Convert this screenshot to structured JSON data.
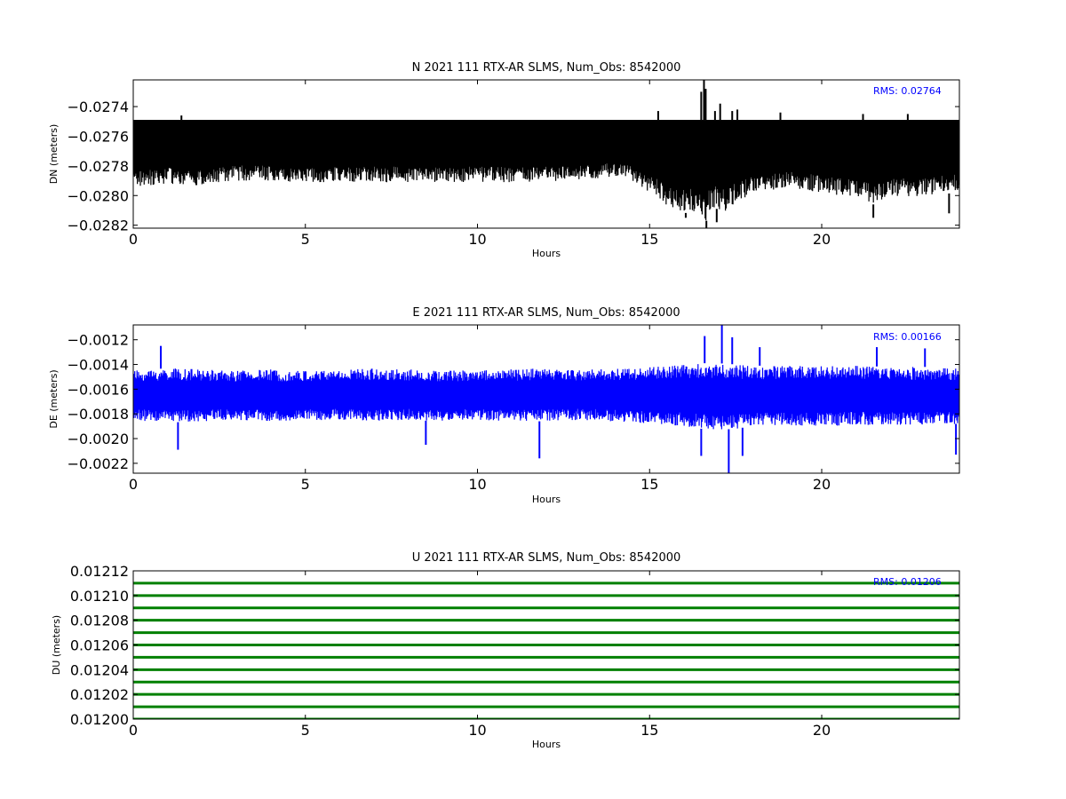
{
  "chart_data": [
    {
      "type": "line",
      "title": "N 2021 111 RTX-AR  SLMS, Num_Obs: 8542000",
      "xlabel": "Hours",
      "ylabel": "DN (meters)",
      "xlim": [
        0,
        24
      ],
      "ylim": [
        -0.02822,
        -0.02722
      ],
      "x_ticks": [
        0,
        5,
        10,
        15,
        20
      ],
      "y_ticks": [
        -0.0274,
        -0.0276,
        -0.0278,
        -0.028,
        -0.0282
      ],
      "y_tick_labels": [
        "−0.0274",
        "−0.0276",
        "−0.0278",
        "−0.0280",
        "−0.0282"
      ],
      "annotation": "RMS:  0.02764",
      "series": [
        {
          "color": "#000000",
          "envelope_x": [
            0,
            0.5,
            1,
            2,
            3,
            4,
            5,
            6,
            7,
            8,
            9,
            10,
            11,
            12,
            13,
            13.8,
            14.5,
            15,
            15.3,
            15.6,
            16,
            16.4,
            16.55,
            16.6,
            16.7,
            16.9,
            17.1,
            17.5,
            18,
            19,
            20,
            21,
            21.5,
            22,
            23,
            24
          ],
          "envelope_high": [
            -0.02749,
            -0.02749,
            -0.02749,
            -0.02749,
            -0.02749,
            -0.02749,
            -0.02749,
            -0.02749,
            -0.02749,
            -0.02749,
            -0.02749,
            -0.02749,
            -0.02749,
            -0.02749,
            -0.02749,
            -0.02749,
            -0.02749,
            -0.02749,
            -0.02749,
            -0.02749,
            -0.02749,
            -0.02749,
            -0.02749,
            -0.02749,
            -0.02749,
            -0.02749,
            -0.02749,
            -0.02749,
            -0.02749,
            -0.02749,
            -0.02749,
            -0.02749,
            -0.02749,
            -0.02749,
            -0.02749,
            -0.02749
          ],
          "envelope_low": [
            -0.02795,
            -0.02793,
            -0.02792,
            -0.02794,
            -0.0279,
            -0.0279,
            -0.02791,
            -0.02791,
            -0.02791,
            -0.02791,
            -0.02791,
            -0.02791,
            -0.02791,
            -0.02791,
            -0.0279,
            -0.02788,
            -0.0279,
            -0.02798,
            -0.02803,
            -0.02808,
            -0.02812,
            -0.0281,
            -0.02818,
            -0.02822,
            -0.02812,
            -0.02808,
            -0.02812,
            -0.02805,
            -0.028,
            -0.02795,
            -0.02798,
            -0.02802,
            -0.02806,
            -0.02802,
            -0.028,
            -0.02798
          ],
          "spikes": [
            [
              1.4,
              -0.02746
            ],
            [
              15.25,
              -0.02743
            ],
            [
              16.5,
              -0.0273
            ],
            [
              16.58,
              -0.02722
            ],
            [
              16.63,
              -0.02728
            ],
            [
              16.9,
              -0.02743
            ],
            [
              17.05,
              -0.02738
            ],
            [
              17.4,
              -0.02743
            ],
            [
              17.55,
              -0.02742
            ],
            [
              18.8,
              -0.02744
            ],
            [
              21.2,
              -0.02745
            ],
            [
              22.5,
              -0.02745
            ],
            [
              16.65,
              -0.02822
            ],
            [
              16.95,
              -0.02818
            ],
            [
              16.05,
              -0.02815
            ],
            [
              21.5,
              -0.02815
            ],
            [
              23.7,
              -0.02812
            ]
          ]
        }
      ]
    },
    {
      "type": "line",
      "title": "E 2021 111 RTX-AR  SLMS, Num_Obs: 8542000",
      "xlabel": "Hours",
      "ylabel": "DE (meters)",
      "xlim": [
        0,
        24
      ],
      "ylim": [
        -0.00228,
        -0.00108
      ],
      "x_ticks": [
        0,
        5,
        10,
        15,
        20
      ],
      "y_ticks": [
        -0.0012,
        -0.0014,
        -0.0016,
        -0.0018,
        -0.002,
        -0.0022
      ],
      "y_tick_labels": [
        "−0.0012",
        "−0.0014",
        "−0.0016",
        "−0.0018",
        "−0.0020",
        "−0.0022"
      ],
      "annotation": "RMS:  0.00166",
      "series": [
        {
          "color": "#0000ff",
          "envelope_x": [
            0,
            1,
            2,
            3,
            4,
            5,
            6,
            7,
            8,
            9,
            10,
            11,
            12,
            13,
            14,
            15,
            15.5,
            16,
            16.5,
            17,
            17.5,
            18,
            19,
            20,
            21,
            22,
            23,
            24
          ],
          "envelope_high": [
            -0.00145,
            -0.00143,
            -0.00144,
            -0.00145,
            -0.00144,
            -0.00145,
            -0.00144,
            -0.00143,
            -0.00144,
            -0.00145,
            -0.00144,
            -0.00144,
            -0.00143,
            -0.00144,
            -0.00143,
            -0.00142,
            -0.00141,
            -0.0014,
            -0.00139,
            -0.00139,
            -0.0014,
            -0.00141,
            -0.00141,
            -0.00141,
            -0.00141,
            -0.00142,
            -0.00142,
            -0.00143
          ],
          "envelope_low": [
            -0.00185,
            -0.00187,
            -0.00186,
            -0.00185,
            -0.00186,
            -0.00185,
            -0.00185,
            -0.00186,
            -0.00185,
            -0.00186,
            -0.00185,
            -0.00186,
            -0.00186,
            -0.00185,
            -0.00186,
            -0.00188,
            -0.00189,
            -0.0019,
            -0.00192,
            -0.00193,
            -0.00192,
            -0.0019,
            -0.0019,
            -0.0019,
            -0.00189,
            -0.00189,
            -0.00189,
            -0.00188
          ],
          "spikes": [
            [
              0.8,
              -0.00125
            ],
            [
              16.6,
              -0.00117
            ],
            [
              17.1,
              -0.00108
            ],
            [
              17.4,
              -0.00118
            ],
            [
              18.2,
              -0.00126
            ],
            [
              21.6,
              -0.00126
            ],
            [
              23.0,
              -0.00127
            ],
            [
              1.3,
              -0.00209
            ],
            [
              8.5,
              -0.00205
            ],
            [
              11.8,
              -0.00216
            ],
            [
              16.5,
              -0.00214
            ],
            [
              17.3,
              -0.00228
            ],
            [
              17.7,
              -0.00214
            ],
            [
              23.9,
              -0.00213
            ]
          ]
        }
      ]
    },
    {
      "type": "line",
      "title": "U 2021 111 RTX-AR  SLMS, Num_Obs: 8542000",
      "xlabel": "Hours",
      "ylabel": "DU (meters)",
      "xlim": [
        0,
        24
      ],
      "ylim": [
        0.012,
        0.01212
      ],
      "x_ticks": [
        0,
        5,
        10,
        15,
        20
      ],
      "y_ticks": [
        0.012,
        0.01202,
        0.01204,
        0.01206,
        0.01208,
        0.0121,
        0.01212
      ],
      "y_tick_labels": [
        "0.01200",
        "0.01202",
        "0.01204",
        "0.01206",
        "0.01208",
        "0.01210",
        "0.01212"
      ],
      "annotation": "RMS:  0.01206",
      "series": [
        {
          "color": "#008000",
          "levels": [
            0.012,
            0.01201,
            0.01202,
            0.01203,
            0.01204,
            0.01205,
            0.01206,
            0.01207,
            0.01208,
            0.01209,
            0.0121,
            0.01211
          ]
        }
      ]
    }
  ]
}
